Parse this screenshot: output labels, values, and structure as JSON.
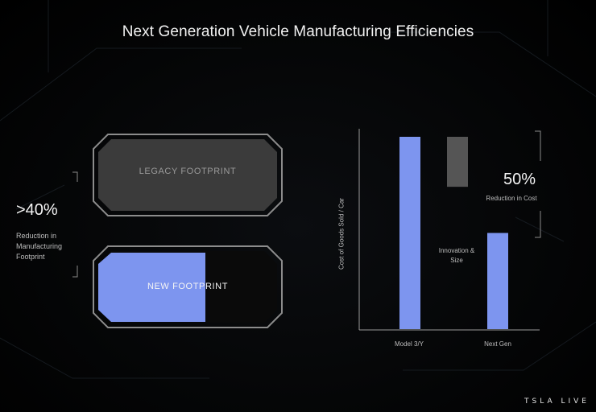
{
  "title": "Next Generation Vehicle Manufacturing Efficiencies",
  "footprint": {
    "stat_value": ">40%",
    "stat_label_lines": [
      "Reduction in",
      "Manufacturing",
      "Footprint"
    ],
    "legacy_label": "LEGACY FOOTPRINT",
    "new_label": "NEW FOOTPRINT",
    "new_fill_fraction": 0.6,
    "new_fill_color": "#7d95ef"
  },
  "chart_data": {
    "type": "bar",
    "ylabel": "Cost of Goods Sold / Car",
    "categories": [
      "Model 3/Y",
      "Next Gen"
    ],
    "values": [
      100,
      50
    ],
    "bar_color": "#7d95ef",
    "waterfall_step": {
      "label_lines": [
        "Innovation &",
        "Size"
      ],
      "color": "#555555"
    },
    "annotation": {
      "value": "50%",
      "label": "Reduction in Cost"
    }
  },
  "brand": "TSLA LIVE"
}
